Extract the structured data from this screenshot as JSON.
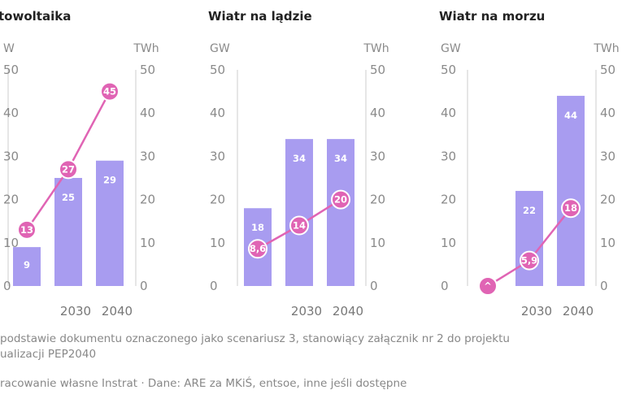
{
  "chart_data": [
    {
      "type": "bar",
      "title": "towoltaika",
      "left_unit": "W",
      "right_unit": "TWh",
      "categories": [
        "",
        "2030",
        "2040"
      ],
      "ylim": [
        0,
        50
      ],
      "bar_values": [
        9,
        25,
        29
      ],
      "bar_labels": [
        "9",
        "25",
        "29"
      ],
      "line_values": [
        13,
        27,
        45
      ],
      "line_labels": [
        "13",
        "27",
        "45"
      ],
      "colors": {
        "bar": "#a89cf0",
        "line": "#e064b4"
      }
    },
    {
      "type": "bar",
      "title": "Wiatr na lądzie",
      "left_unit": "GW",
      "right_unit": "TWh",
      "categories": [
        "",
        "2030",
        "2040"
      ],
      "ylim": [
        0,
        50
      ],
      "bar_values": [
        18,
        34,
        34
      ],
      "bar_labels": [
        "18",
        "34",
        "34"
      ],
      "line_values": [
        8.6,
        14,
        20
      ],
      "line_labels": [
        "8,6",
        "14",
        "20"
      ],
      "colors": {
        "bar": "#a89cf0",
        "line": "#e064b4"
      }
    },
    {
      "type": "bar",
      "title": "Wiatr na morzu",
      "left_unit": "GW",
      "right_unit": "TWh",
      "categories": [
        "",
        "2030",
        "2040"
      ],
      "ylim": [
        0,
        50
      ],
      "bar_values": [
        0,
        22,
        44
      ],
      "bar_labels": [
        "",
        "22",
        "44"
      ],
      "line_values": [
        0,
        5.9,
        18
      ],
      "line_labels": [
        "^",
        "5,9",
        "18"
      ],
      "colors": {
        "bar": "#a89cf0",
        "line": "#e064b4"
      }
    }
  ],
  "ticks": [
    "0",
    "10",
    "20",
    "30",
    "40",
    "50"
  ],
  "notes": {
    "line1": "podstawie dokumentu oznaczonego jako scenariusz 3, stanowiący załącznik nr 2 do projektu",
    "line2": "ualizacji PEP2040",
    "line3": "racowanie własne Instrat · Dane: ARE za MKiŚ, entsoe, inne jeśli dostępne"
  }
}
